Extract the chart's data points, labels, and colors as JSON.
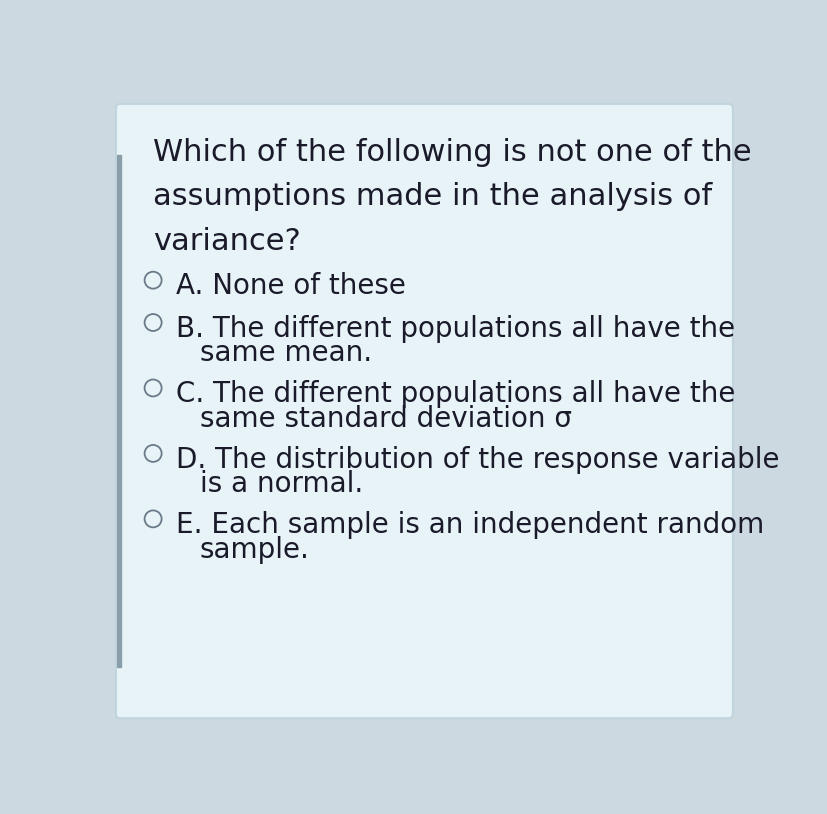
{
  "bg_color": "#cdd9e0",
  "card_color": "#e8f3f8",
  "border_color": "#c0d4de",
  "left_bar_color": "#8a9eaa",
  "text_color": "#1a1a2a",
  "question_lines": [
    "Which of the following is not one of the",
    "assumptions made in the analysis of",
    "variance?"
  ],
  "options": [
    {
      "label": "A.",
      "lines": [
        "None of these"
      ]
    },
    {
      "label": "B.",
      "lines": [
        "The different populations all have the",
        "same mean."
      ]
    },
    {
      "label": "C.",
      "lines": [
        "The different populations all have the",
        "same standard deviation σ"
      ]
    },
    {
      "label": "D.",
      "lines": [
        "The distribution of the response variable",
        "is a normal."
      ]
    },
    {
      "label": "E.",
      "lines": [
        "Each sample is an independent random",
        "sample."
      ]
    }
  ],
  "question_fontsize": 22,
  "option_fontsize": 20,
  "figsize": [
    8.28,
    8.14
  ],
  "dpi": 100
}
